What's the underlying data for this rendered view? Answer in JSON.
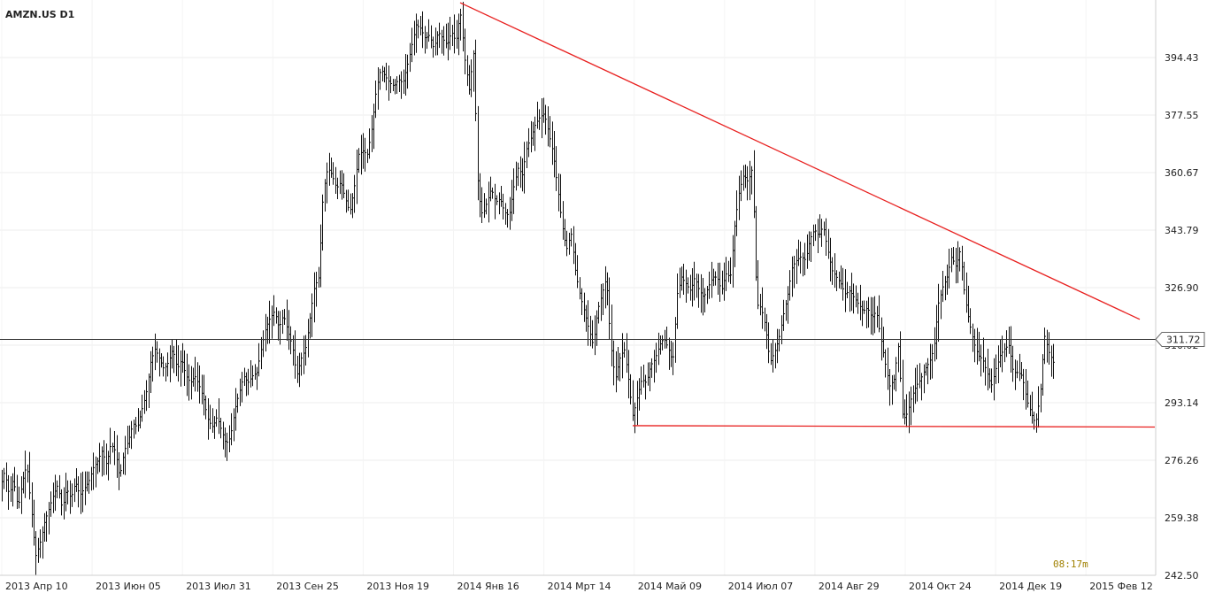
{
  "chart_data": {
    "type": "line",
    "title": "AMZN.US D1",
    "timer": "08:17m",
    "y_ticks": [
      "242.50",
      "259.38",
      "276.26",
      "293.14",
      "310.02",
      "326.90",
      "343.79",
      "360.67",
      "377.55",
      "394.43"
    ],
    "x_ticks": [
      "2013 Апр 10",
      "2013 Июн 05",
      "2013 Июл 31",
      "2013 Сен 25",
      "2013 Ноя 19",
      "2014 Янв 16",
      "2014 Мрт 14",
      "2014 Май 09",
      "2014 Июл 07",
      "2014 Авг 29",
      "2014 Окт 24",
      "2014 Дек 19",
      "2015 Фев 12"
    ],
    "ylim": [
      242.5,
      411.3
    ],
    "current_price": "311.72",
    "grid": true,
    "price_series": [
      [
        0,
        268
      ],
      [
        5,
        273
      ],
      [
        10,
        266
      ],
      [
        15,
        271
      ],
      [
        20,
        262
      ],
      [
        25,
        270
      ],
      [
        30,
        275
      ],
      [
        35,
        262
      ],
      [
        40,
        248
      ],
      [
        45,
        252
      ],
      [
        50,
        258
      ],
      [
        55,
        262
      ],
      [
        60,
        266
      ],
      [
        65,
        269
      ],
      [
        70,
        262
      ],
      [
        75,
        268
      ],
      [
        80,
        265
      ],
      [
        85,
        270
      ],
      [
        90,
        266
      ],
      [
        95,
        268
      ],
      [
        100,
        270
      ],
      [
        105,
        274
      ],
      [
        110,
        276
      ],
      [
        115,
        279
      ],
      [
        120,
        275
      ],
      [
        125,
        281
      ],
      [
        130,
        279
      ],
      [
        135,
        271
      ],
      [
        140,
        279
      ],
      [
        145,
        282
      ],
      [
        150,
        287
      ],
      [
        155,
        286
      ],
      [
        160,
        291
      ],
      [
        165,
        296
      ],
      [
        170,
        305
      ],
      [
        175,
        309
      ],
      [
        180,
        306
      ],
      [
        185,
        303
      ],
      [
        190,
        305
      ],
      [
        195,
        309
      ],
      [
        200,
        303
      ],
      [
        205,
        306
      ],
      [
        210,
        301
      ],
      [
        215,
        299
      ],
      [
        220,
        301
      ],
      [
        225,
        298
      ],
      [
        230,
        294
      ],
      [
        235,
        288
      ],
      [
        240,
        286
      ],
      [
        245,
        289
      ],
      [
        250,
        285
      ],
      [
        255,
        281
      ],
      [
        260,
        283
      ],
      [
        265,
        291
      ],
      [
        270,
        296
      ],
      [
        275,
        301
      ],
      [
        280,
        299
      ],
      [
        285,
        301
      ],
      [
        290,
        302
      ],
      [
        295,
        309
      ],
      [
        300,
        315
      ],
      [
        305,
        318
      ],
      [
        310,
        320
      ],
      [
        315,
        315
      ],
      [
        320,
        319
      ],
      [
        325,
        314
      ],
      [
        330,
        310
      ],
      [
        335,
        301
      ],
      [
        340,
        306
      ],
      [
        345,
        309
      ],
      [
        350,
        318
      ],
      [
        355,
        327
      ],
      [
        360,
        330
      ],
      [
        365,
        355
      ],
      [
        370,
        362
      ],
      [
        375,
        360
      ],
      [
        380,
        356
      ],
      [
        385,
        358
      ],
      [
        390,
        353
      ],
      [
        395,
        349
      ],
      [
        400,
        356
      ],
      [
        405,
        366
      ],
      [
        410,
        367
      ],
      [
        415,
        366
      ],
      [
        420,
        374
      ],
      [
        425,
        385
      ],
      [
        430,
        391
      ],
      [
        435,
        389
      ],
      [
        440,
        387
      ],
      [
        445,
        386
      ],
      [
        450,
        388
      ],
      [
        455,
        387
      ],
      [
        460,
        392
      ],
      [
        465,
        398
      ],
      [
        470,
        404
      ],
      [
        475,
        403
      ],
      [
        480,
        400
      ],
      [
        485,
        401
      ],
      [
        490,
        397
      ],
      [
        495,
        402
      ],
      [
        500,
        400
      ],
      [
        505,
        398
      ],
      [
        510,
        402
      ],
      [
        515,
        399
      ],
      [
        520,
        408
      ],
      [
        525,
        394
      ],
      [
        530,
        385
      ],
      [
        535,
        396
      ],
      [
        540,
        355
      ],
      [
        545,
        348
      ],
      [
        550,
        352
      ],
      [
        555,
        356
      ],
      [
        560,
        352
      ],
      [
        565,
        353
      ],
      [
        570,
        349
      ],
      [
        575,
        348
      ],
      [
        580,
        356
      ],
      [
        585,
        362
      ],
      [
        590,
        360
      ],
      [
        595,
        368
      ],
      [
        600,
        371
      ],
      [
        605,
        375
      ],
      [
        610,
        377
      ],
      [
        615,
        378
      ],
      [
        620,
        372
      ],
      [
        625,
        366
      ],
      [
        630,
        356
      ],
      [
        635,
        345
      ],
      [
        640,
        338
      ],
      [
        645,
        343
      ],
      [
        650,
        332
      ],
      [
        655,
        325
      ],
      [
        660,
        320
      ],
      [
        665,
        315
      ],
      [
        670,
        310
      ],
      [
        675,
        320
      ],
      [
        680,
        325
      ],
      [
        685,
        330
      ],
      [
        690,
        310
      ],
      [
        695,
        300
      ],
      [
        700,
        306
      ],
      [
        705,
        309
      ],
      [
        710,
        300
      ],
      [
        715,
        289
      ],
      [
        720,
        295
      ],
      [
        725,
        300
      ],
      [
        730,
        299
      ],
      [
        735,
        304
      ],
      [
        740,
        306
      ],
      [
        745,
        310
      ],
      [
        750,
        312
      ],
      [
        755,
        309
      ],
      [
        760,
        305
      ],
      [
        765,
        325
      ],
      [
        770,
        330
      ],
      [
        775,
        328
      ],
      [
        780,
        326
      ],
      [
        785,
        330
      ],
      [
        790,
        326
      ],
      [
        795,
        324
      ],
      [
        800,
        327
      ],
      [
        805,
        330
      ],
      [
        810,
        330
      ],
      [
        815,
        326
      ],
      [
        820,
        331
      ],
      [
        825,
        330
      ],
      [
        830,
        345
      ],
      [
        835,
        355
      ],
      [
        840,
        360
      ],
      [
        845,
        358
      ],
      [
        850,
        362
      ],
      [
        855,
        322
      ],
      [
        860,
        321
      ],
      [
        865,
        315
      ],
      [
        870,
        305
      ],
      [
        875,
        308
      ],
      [
        880,
        312
      ],
      [
        885,
        319
      ],
      [
        890,
        325
      ],
      [
        895,
        333
      ],
      [
        900,
        335
      ],
      [
        905,
        336
      ],
      [
        910,
        335
      ],
      [
        915,
        341
      ],
      [
        920,
        344
      ],
      [
        925,
        342
      ],
      [
        930,
        345
      ],
      [
        935,
        338
      ],
      [
        940,
        332
      ],
      [
        945,
        330
      ],
      [
        950,
        328
      ],
      [
        955,
        325
      ],
      [
        960,
        326
      ],
      [
        965,
        324
      ],
      [
        970,
        322
      ],
      [
        975,
        320
      ],
      [
        980,
        321
      ],
      [
        985,
        318
      ],
      [
        990,
        320
      ],
      [
        995,
        312
      ],
      [
        1000,
        305
      ],
      [
        1005,
        298
      ],
      [
        1010,
        300
      ],
      [
        1015,
        310
      ],
      [
        1020,
        288
      ],
      [
        1025,
        290
      ],
      [
        1030,
        295
      ],
      [
        1035,
        298
      ],
      [
        1040,
        300
      ],
      [
        1045,
        303
      ],
      [
        1050,
        305
      ],
      [
        1055,
        309
      ],
      [
        1060,
        322
      ],
      [
        1065,
        327
      ],
      [
        1070,
        330
      ],
      [
        1075,
        336
      ],
      [
        1080,
        333
      ],
      [
        1085,
        338
      ],
      [
        1090,
        324
      ],
      [
        1095,
        317
      ],
      [
        1100,
        311
      ],
      [
        1105,
        307
      ],
      [
        1110,
        306
      ],
      [
        1115,
        302
      ],
      [
        1120,
        298
      ],
      [
        1125,
        303
      ],
      [
        1130,
        307
      ],
      [
        1135,
        309
      ],
      [
        1140,
        310
      ],
      [
        1145,
        302
      ],
      [
        1150,
        302
      ],
      [
        1155,
        301
      ],
      [
        1160,
        294
      ],
      [
        1165,
        290
      ],
      [
        1170,
        287
      ],
      [
        1175,
        295
      ],
      [
        1180,
        313
      ],
      [
        1185,
        308
      ],
      [
        1190,
        305
      ]
    ],
    "trendlines": [
      {
        "points": [
          [
            520,
            410.5
          ],
          [
            1288,
            317.6
          ]
        ]
      },
      {
        "points": [
          [
            715,
            286.4
          ],
          [
            1305,
            286.0
          ]
        ]
      }
    ]
  }
}
